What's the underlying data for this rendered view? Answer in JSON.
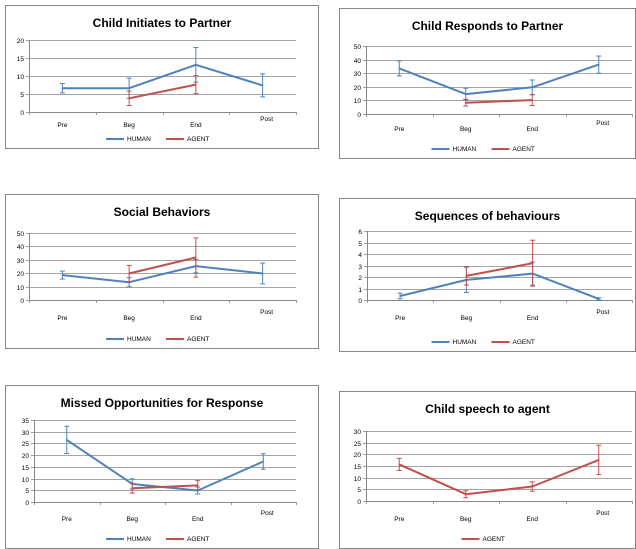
{
  "colors": {
    "human": "#4f81bd",
    "agent": "#c0504d",
    "axis": "#868686",
    "grid": "#868686",
    "border": "#868686"
  },
  "chart_data": [
    {
      "type": "line",
      "title": "Child Initiates to Partner",
      "categories": [
        "Pre",
        "Beg",
        "End",
        "Post"
      ],
      "ylim": [
        0,
        20
      ],
      "ystep": 5,
      "grid": true,
      "legend": "bottom",
      "series": [
        {
          "name": "HUMAN",
          "values": [
            6.6,
            6.6,
            13.1,
            7.4
          ],
          "err": [
            1.3,
            2.8,
            4.8,
            3.2
          ]
        },
        {
          "name": "AGENT",
          "values": [
            null,
            3.8,
            7.6,
            null
          ],
          "err": [
            null,
            2.0,
            2.5,
            null
          ]
        }
      ]
    },
    {
      "type": "line",
      "title": "Child Responds to Partner",
      "categories": [
        "Pre",
        "Beg",
        "End",
        "Post"
      ],
      "ylim": [
        0,
        50
      ],
      "ystep": 10,
      "grid": true,
      "legend": "bottom",
      "series": [
        {
          "name": "HUMAN",
          "values": [
            33.5,
            14.6,
            19.6,
            36.3
          ],
          "err": [
            5.5,
            4.3,
            5.4,
            6.3
          ]
        },
        {
          "name": "AGENT",
          "values": [
            null,
            8.3,
            10.2,
            null
          ],
          "err": [
            null,
            2.5,
            4.0,
            null
          ]
        }
      ]
    },
    {
      "type": "line",
      "title": "Social Behaviors",
      "categories": [
        "Pre",
        "Beg",
        "End",
        "Post"
      ],
      "ylim": [
        0,
        50
      ],
      "ystep": 10,
      "grid": true,
      "legend": "bottom",
      "series": [
        {
          "name": "HUMAN",
          "values": [
            18.6,
            13.3,
            25.3,
            19.8
          ],
          "err": [
            3.0,
            3.4,
            5.0,
            7.8
          ]
        },
        {
          "name": "AGENT",
          "values": [
            null,
            19.8,
            31.7,
            null
          ],
          "err": [
            null,
            6.0,
            14.6,
            null
          ]
        }
      ]
    },
    {
      "type": "line",
      "title": "Sequences of behaviours",
      "categories": [
        "Pre",
        "Beg",
        "End",
        "Post"
      ],
      "ylim": [
        0,
        6
      ],
      "ystep": 1,
      "grid": true,
      "legend": "bottom",
      "series": [
        {
          "name": "HUMAN",
          "values": [
            0.35,
            1.75,
            2.3,
            0.1
          ],
          "err": [
            0.25,
            1.1,
            1.0,
            0.1
          ]
        },
        {
          "name": "AGENT",
          "values": [
            null,
            2.1,
            3.2,
            null
          ],
          "err": [
            null,
            0.8,
            2.0,
            null
          ]
        }
      ]
    },
    {
      "type": "line",
      "title": "Missed Opportunities for Response",
      "categories": [
        "Pre",
        "Beg",
        "End",
        "Post"
      ],
      "ylim": [
        0,
        35
      ],
      "ystep": 5,
      "grid": true,
      "legend": "bottom",
      "series": [
        {
          "name": "HUMAN",
          "values": [
            26.5,
            7.7,
            4.9,
            17.3
          ],
          "err": [
            5.8,
            2.2,
            1.5,
            3.3
          ]
        },
        {
          "name": "AGENT",
          "values": [
            null,
            5.9,
            7.1,
            null
          ],
          "err": [
            null,
            2.1,
            2.0,
            null
          ]
        }
      ]
    },
    {
      "type": "line",
      "title": "Child speech to agent",
      "categories": [
        "Pre",
        "Beg",
        "End",
        "Post"
      ],
      "ylim": [
        0,
        30
      ],
      "ystep": 5,
      "grid": true,
      "legend": "bottom",
      "series": [
        {
          "name": "AGENT",
          "values": [
            15.7,
            2.9,
            6.2,
            17.6
          ],
          "err": [
            2.6,
            1.5,
            2.0,
            6.3
          ]
        }
      ]
    }
  ]
}
